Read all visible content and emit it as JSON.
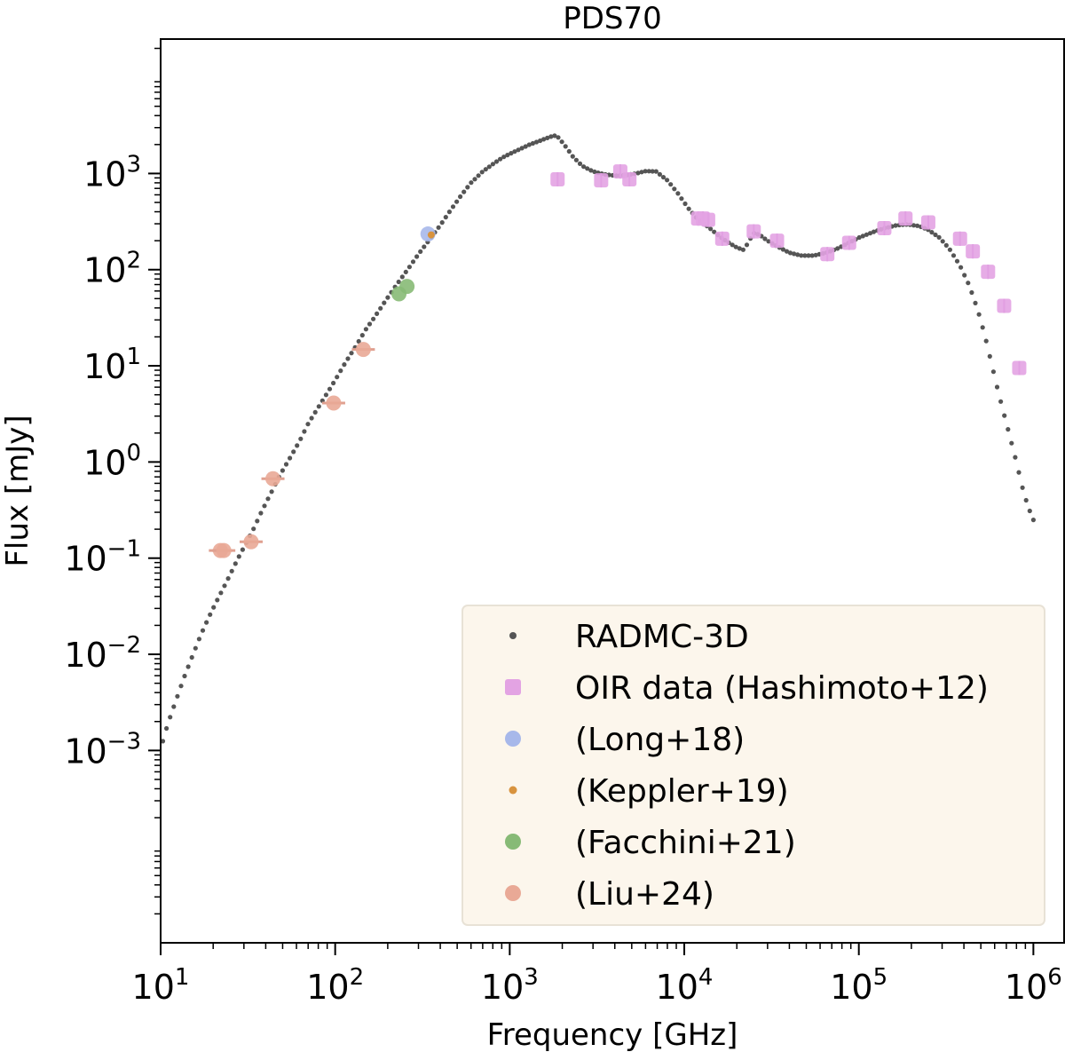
{
  "chart_data": {
    "type": "scatter",
    "title": "PDS70",
    "xlabel": "Frequency [GHz]",
    "ylabel": "Flux [mJy]",
    "xscale": "log",
    "yscale": "log",
    "xlim": [
      10,
      1500000
    ],
    "ylim": [
      1e-05,
      25000
    ],
    "x_ticks": [
      {
        "base": "10",
        "exp": "1"
      },
      {
        "base": "10",
        "exp": "2"
      },
      {
        "base": "10",
        "exp": "3"
      },
      {
        "base": "10",
        "exp": "4"
      },
      {
        "base": "10",
        "exp": "5"
      },
      {
        "base": "10",
        "exp": "6"
      }
    ],
    "y_ticks": [
      {
        "base": "10",
        "exp": "−3"
      },
      {
        "base": "10",
        "exp": "−2"
      },
      {
        "base": "10",
        "exp": "−1"
      },
      {
        "base": "10",
        "exp": "0"
      },
      {
        "base": "10",
        "exp": "1"
      },
      {
        "base": "10",
        "exp": "2"
      },
      {
        "base": "10",
        "exp": "3"
      }
    ],
    "legend_position": "lower-right",
    "series": [
      {
        "name": "RADMC-3D",
        "kind": "model",
        "color": "#555555",
        "x": [
          10.3,
          11,
          12,
          13.5,
          15,
          17,
          19,
          21,
          24,
          27,
          30,
          34,
          38,
          43,
          48,
          55,
          62,
          70,
          80,
          90,
          100,
          115,
          130,
          150,
          170,
          195,
          225,
          260,
          300,
          350,
          400,
          460,
          530,
          600,
          700,
          800,
          900,
          1000,
          1150,
          1300,
          1500,
          1700,
          1850,
          2050,
          2300,
          2600,
          3000,
          3500,
          4000,
          4600,
          5300,
          6000,
          6900,
          8000,
          9200,
          10500,
          12000,
          14000,
          16000,
          18000,
          20000,
          22000,
          23500,
          25000,
          27000,
          30000,
          35000,
          40000,
          47000,
          55000,
          65000,
          75000,
          85000,
          100000,
          120000,
          140000,
          165000,
          190000,
          220000,
          250000,
          290000,
          330000,
          380000,
          430000,
          480000,
          530000,
          580000,
          630000,
          680000,
          730000,
          780000,
          830000,
          880000,
          940000,
          1000000
        ],
        "y": [
          0.00125,
          0.0019,
          0.003,
          0.0055,
          0.009,
          0.016,
          0.025,
          0.036,
          0.058,
          0.09,
          0.13,
          0.2,
          0.31,
          0.48,
          0.72,
          1.1,
          1.6,
          2.5,
          3.7,
          5.2,
          7.1,
          11,
          15.5,
          24,
          33,
          48,
          70,
          100,
          145,
          210,
          290,
          420,
          600,
          800,
          1050,
          1250,
          1450,
          1600,
          1800,
          2000,
          2200,
          2400,
          2500,
          2000,
          1500,
          1200,
          1050,
          980,
          950,
          960,
          1000,
          1060,
          1050,
          850,
          620,
          440,
          330,
          270,
          220,
          190,
          170,
          160,
          200,
          240,
          230,
          200,
          170,
          150,
          140,
          140,
          150,
          165,
          185,
          215,
          245,
          270,
          290,
          295,
          285,
          260,
          215,
          165,
          110,
          68,
          38,
          20,
          10,
          5.3,
          3.1,
          1.9,
          1.2,
          0.75,
          0.48,
          0.33,
          0.25
        ]
      },
      {
        "name": "OIR data (Hashimoto+12)",
        "kind": "square",
        "color": "#e3a3e3",
        "x": [
          1880,
          3340,
          4300,
          4850,
          12000,
          12800,
          13700,
          16500,
          25000,
          34000,
          66000,
          88000,
          140000,
          185000,
          250000,
          380000,
          450000,
          550000,
          680000,
          830000
        ],
        "y": [
          870,
          850,
          1050,
          870,
          340,
          340,
          330,
          210,
          250,
          200,
          145,
          190,
          270,
          340,
          310,
          210,
          155,
          95,
          42,
          9.5
        ]
      },
      {
        "name": "(Long+18)",
        "kind": "circle",
        "color": "#a7b8ea",
        "x": [
          340
        ],
        "y": [
          235
        ]
      },
      {
        "name": "(Keppler+19)",
        "kind": "small-dot",
        "color": "#d8933e",
        "x": [
          355
        ],
        "y": [
          230
        ]
      },
      {
        "name": "(Facchini+21)",
        "kind": "circle",
        "color": "#87ba76",
        "x": [
          232,
          258
        ],
        "y": [
          56,
          67
        ]
      },
      {
        "name": "(Liu+24)",
        "kind": "circle",
        "color": "#e9a996",
        "x": [
          22,
          23,
          33,
          44,
          98,
          145
        ],
        "y": [
          0.12,
          0.12,
          0.148,
          0.67,
          4.1,
          14.8
        ]
      }
    ]
  },
  "legend": {
    "background": "#fcf6ec",
    "border": "#e8e2d6"
  }
}
